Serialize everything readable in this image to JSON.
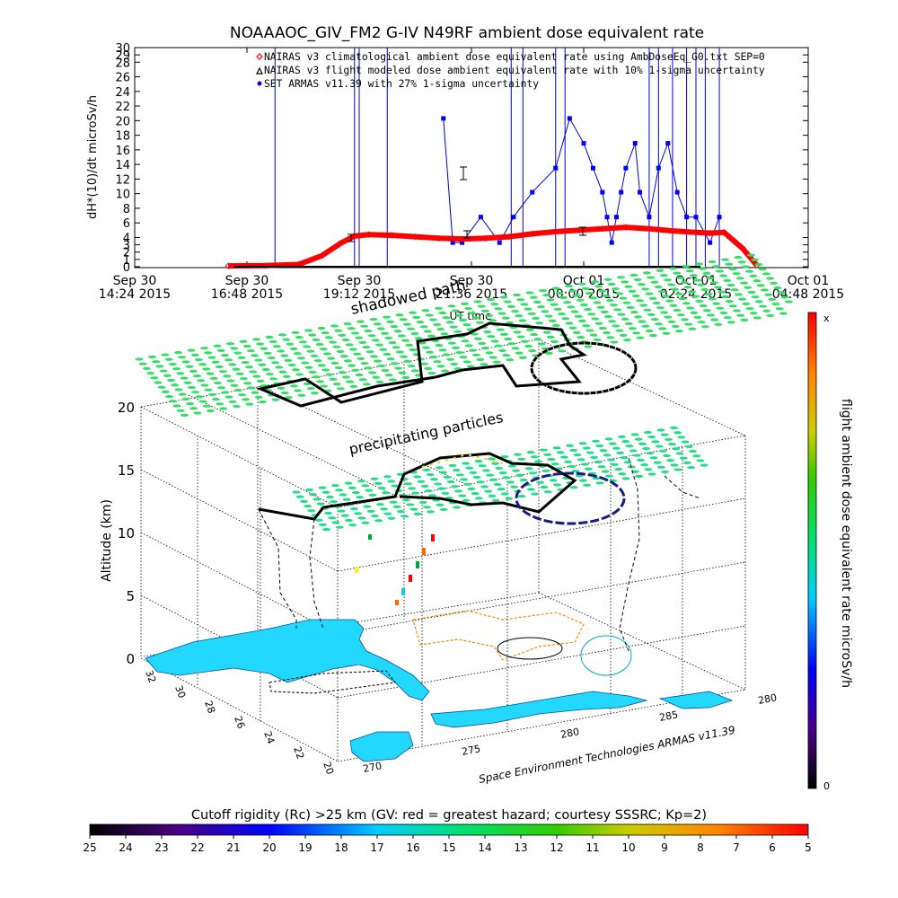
{
  "top_chart": {
    "title": "NOAAAOC_GIV_FM2 G-IV    N49RF   ambient dose equivalent rate",
    "ylabel": "dH*(10)/dt microSv/h",
    "xlabel": "UT time",
    "legend": [
      {
        "label": "NAIRAS v3 climatological ambient dose equivalent rate using AmbDoseEq_G0.txt SEP=0",
        "color": "#ff0000",
        "symbol": "diamond"
      },
      {
        "label": "NAIRAS v3 flight modeled dose ambient equivalent rate with 10% 1-sigma uncertainty",
        "color": "#000000",
        "symbol": "triangle"
      },
      {
        "label": "SET ARMAS v11.39 with 27% 1-sigma uncertainty",
        "color": "#0000ff",
        "symbol": "dot"
      }
    ],
    "x_ticks": [
      {
        "line1": "Sep 30",
        "line2": "14:24 2015"
      },
      {
        "line1": "Sep 30",
        "line2": "16:48 2015"
      },
      {
        "line1": "Sep 30",
        "line2": "19:12 2015"
      },
      {
        "line1": "Sep 30",
        "line2": "21:36 2015"
      },
      {
        "line1": "Oct 01",
        "line2": "00:00 2015"
      },
      {
        "line1": "Oct 01",
        "line2": "02:24 2015"
      },
      {
        "line1": "Oct 01",
        "line2": "04:48 2015"
      }
    ],
    "y_ticks": [
      "0",
      "1",
      "2",
      "3",
      "4",
      "6",
      "8",
      "10",
      "12",
      "14",
      "16",
      "18",
      "20",
      "22",
      "24",
      "26",
      "28",
      "29",
      "30"
    ]
  },
  "chart_data": [
    {
      "type": "line",
      "title": "NOAAAOC_GIV_FM2 G-IV    N49RF   ambient dose equivalent rate",
      "xlabel": "UT time",
      "ylabel": "dH*(10)/dt microSv/h",
      "x_unit": "hours after Sep 30 14:24 2015 UT",
      "xlim": [
        0,
        14.4
      ],
      "ylim": [
        0,
        30
      ],
      "series": [
        {
          "name": "NAIRAS v3 climatological ambient dose equivalent rate using AmbDoseEq_G0.txt SEP=0",
          "color": "#ff0000",
          "x": [
            2.0,
            2.8,
            3.5,
            4.0,
            4.4,
            4.7,
            5.0,
            5.5,
            6.0,
            6.5,
            7.0,
            7.5,
            8.0,
            8.5,
            9.0,
            9.5,
            10.0,
            10.5,
            11.0,
            11.5,
            12.0,
            12.3,
            12.6,
            13.0,
            13.3
          ],
          "y": [
            0.1,
            0.15,
            0.3,
            1.5,
            3.2,
            4.2,
            4.4,
            4.3,
            4.1,
            3.9,
            3.8,
            3.9,
            4.1,
            4.5,
            4.8,
            5.0,
            5.2,
            5.4,
            5.2,
            4.9,
            4.7,
            4.6,
            4.7,
            2.5,
            0.2
          ]
        },
        {
          "name": "SET ARMAS v11.39 with 27% 1-sigma uncertainty",
          "color": "#0000ff",
          "x": [
            6.6,
            6.8,
            7.0,
            7.4,
            7.8,
            8.1,
            8.5,
            9.0,
            9.3,
            9.6,
            9.8,
            10.0,
            10.1,
            10.2,
            10.3,
            10.4,
            10.5,
            10.7,
            10.8,
            11.0,
            11.2,
            11.4,
            11.6,
            11.8,
            12.0,
            12.3,
            12.5
          ],
          "y": [
            20.3,
            3.3,
            3.3,
            6.8,
            3.3,
            6.8,
            10.2,
            13.5,
            20.3,
            16.9,
            13.5,
            10.2,
            6.8,
            3.3,
            6.8,
            10.2,
            13.5,
            16.9,
            10.2,
            6.8,
            13.5,
            16.9,
            10.2,
            6.8,
            6.8,
            3.3,
            6.8
          ]
        }
      ]
    },
    {
      "type": "heatmap",
      "title": "Cutoff rigidity (Rc) >25 km (GV: red = greatest hazard; courtesy SSSRC; Kp=2)",
      "categories": [
        "25",
        "24",
        "23",
        "22",
        "21",
        "20",
        "19",
        "18",
        "17",
        "16",
        "15",
        "14",
        "13",
        "12",
        "11",
        "10",
        "9",
        "8",
        "7",
        "6",
        "5"
      ],
      "zlabel": "Altitude (km)",
      "zlim": [
        0,
        20
      ],
      "lat_ticks": [
        "32",
        "30",
        "28",
        "26",
        "24",
        "22",
        "20"
      ],
      "lon_ticks": [
        "270",
        "275",
        "280",
        "285",
        "280"
      ]
    }
  ],
  "scene": {
    "annotations": {
      "shadowed_path": "shadowed path",
      "precipitating": "precipitating particles"
    },
    "z_axis_label": "Altitude (km)",
    "z_ticks": [
      "0",
      "5",
      "10",
      "15",
      "20"
    ],
    "lat_ticks": [
      "32",
      "30",
      "28",
      "26",
      "24",
      "22",
      "20"
    ],
    "lon_ticks": [
      "270",
      "275",
      "280",
      "285",
      "280"
    ],
    "credit": "Space Environment Technologies ARMAS v11.39",
    "right_bar": {
      "label": "flight ambient dose equivalent rate microSv/h",
      "top": "x",
      "bottom": "0"
    }
  },
  "bottom_bar": {
    "title": "Cutoff rigidity (Rc) >25 km (GV: red = greatest hazard; courtesy SSSRC; Kp=2)",
    "labels": [
      "25",
      "24",
      "23",
      "22",
      "21",
      "20",
      "19",
      "18",
      "17",
      "16",
      "15",
      "14",
      "13",
      "12",
      "11",
      "10",
      "9",
      "8",
      "7",
      "6",
      "5"
    ]
  }
}
